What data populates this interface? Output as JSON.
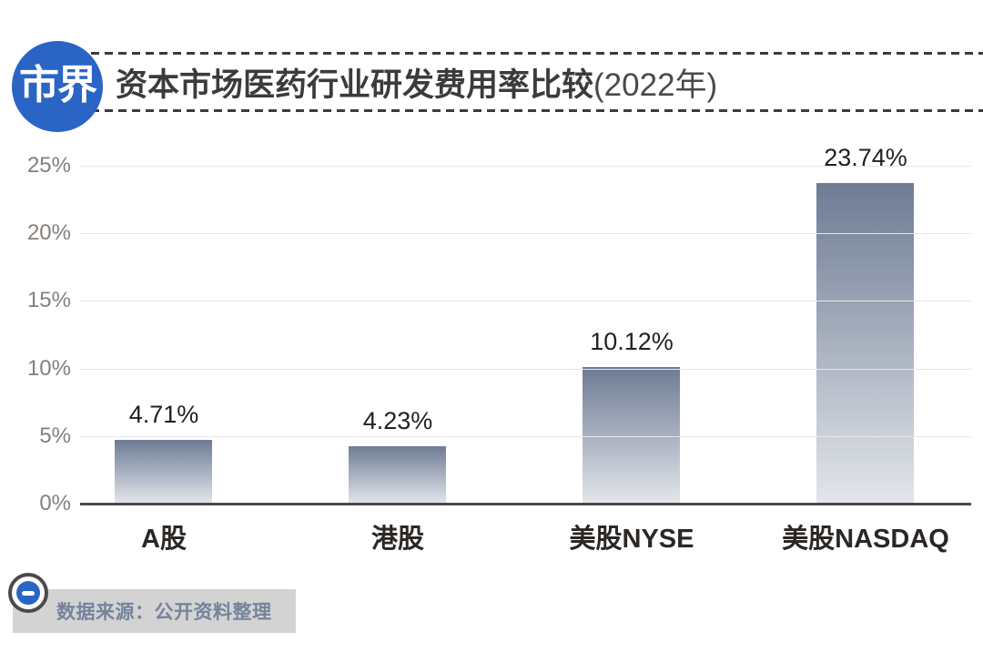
{
  "header": {
    "logo_text": "市界",
    "title_main": "资本市场医药行业研发费用率比较",
    "title_suffix": "(2022年)"
  },
  "chart_data": {
    "type": "bar",
    "title": "资本市场医药行业研发费用率比较(2022年)",
    "categories": [
      "A股",
      "港股",
      "美股NYSE",
      "美股NASDAQ"
    ],
    "values": [
      4.71,
      4.23,
      10.12,
      23.74
    ],
    "value_labels": [
      "4.71%",
      "4.23%",
      "10.12%",
      "23.74%"
    ],
    "unit": "percent",
    "ylim": [
      0,
      25
    ],
    "yticks": [
      0,
      5,
      10,
      15,
      20,
      25
    ],
    "ytick_labels": [
      "0%",
      "5%",
      "10%",
      "15%",
      "20%",
      "25%"
    ],
    "grid": true,
    "legend": "none",
    "bar_gradient_top": "#6e7b94",
    "bar_gradient_bottom": "#e3e6eb"
  },
  "footer": {
    "source_text": "数据来源：公开资料整理",
    "badge_icon": "minus-circle-icon"
  },
  "colors": {
    "brand_blue": "#2a65c5",
    "title_text": "#3b3b3b",
    "axis_label": "#857f7b",
    "gridline": "#e8e6e3",
    "baseline": "#4c4947",
    "value_label": "#242020",
    "category_label": "#2b2725",
    "footer_bg": "#d3d3d3",
    "footer_text": "#76839b"
  }
}
